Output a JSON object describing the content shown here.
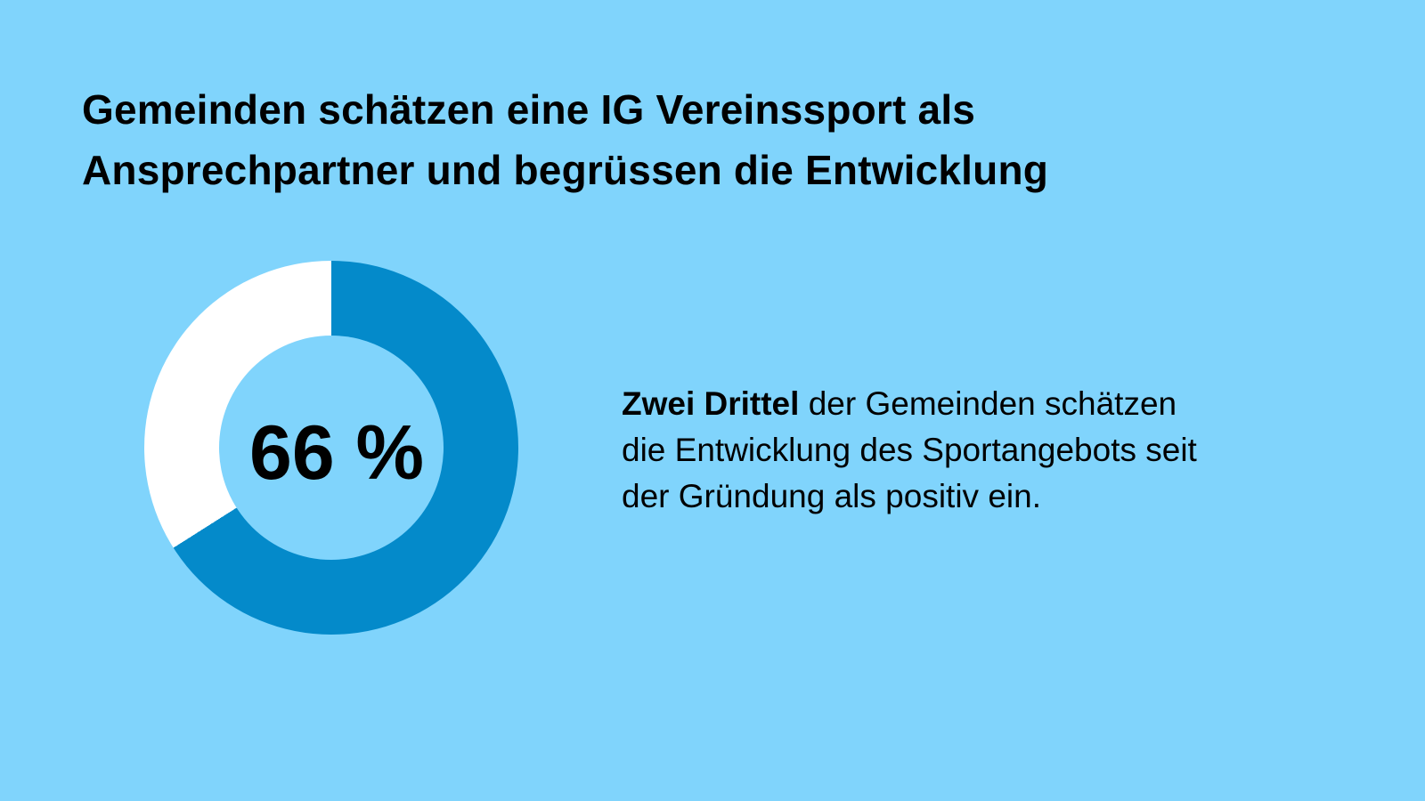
{
  "colors": {
    "background": "#80D4FC",
    "chart_fill": "#048ACA",
    "chart_remainder": "#FFFFFF",
    "text": "#000000"
  },
  "title": {
    "line1": "Gemeinden schätzen eine IG Vereinssport als",
    "line2": "Ansprechpartner und begrüssen die Entwicklung"
  },
  "chart_data": {
    "type": "pie",
    "subtype": "donut",
    "values": [
      66,
      34
    ],
    "colors": [
      "#048ACA",
      "#FFFFFF"
    ],
    "start_angle_deg": 0,
    "direction": "clockwise",
    "donut_hole_ratio": 0.6,
    "center_label": "66 %",
    "legend": "none"
  },
  "description": {
    "line1_bold": "Zwei Drittel",
    "line1_rest": " der Gemeinden schätzen",
    "line2": "die Entwicklung des Sportangebots seit",
    "line3": "der Gründung als positiv ein."
  }
}
